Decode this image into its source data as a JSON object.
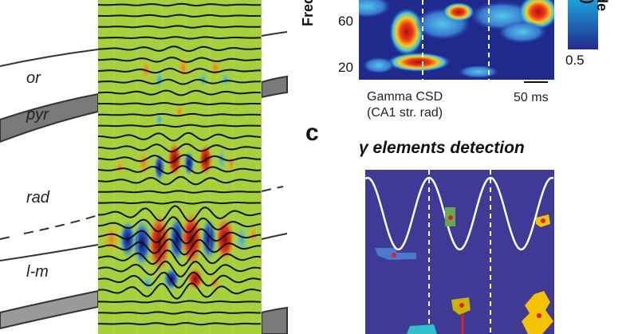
{
  "layers": {
    "or": "or",
    "pyr": "pyr",
    "rad": "rad",
    "lm": "l-m"
  },
  "panel_b": {
    "ylabel_fragment": "Freq",
    "yticks": [
      "60",
      "20"
    ],
    "colorbar_label_fragment": "ude\nn²)",
    "colorbar_min": "0.5",
    "caption_line1": "Gamma CSD",
    "caption_line2": "(CA1 str. rad)",
    "scalebar_label": "50 ms"
  },
  "panel_c": {
    "letter": "c",
    "title": "γ elements detection"
  },
  "colors": {
    "csd_background": "#a7d13a",
    "heatmap_background": "#1f2a8c",
    "detection_background": "#3e3a96",
    "colorbar_top": "#1aa0dc",
    "colorbar_bottom": "#232b8c",
    "layer_band": "#7a7a7a"
  }
}
